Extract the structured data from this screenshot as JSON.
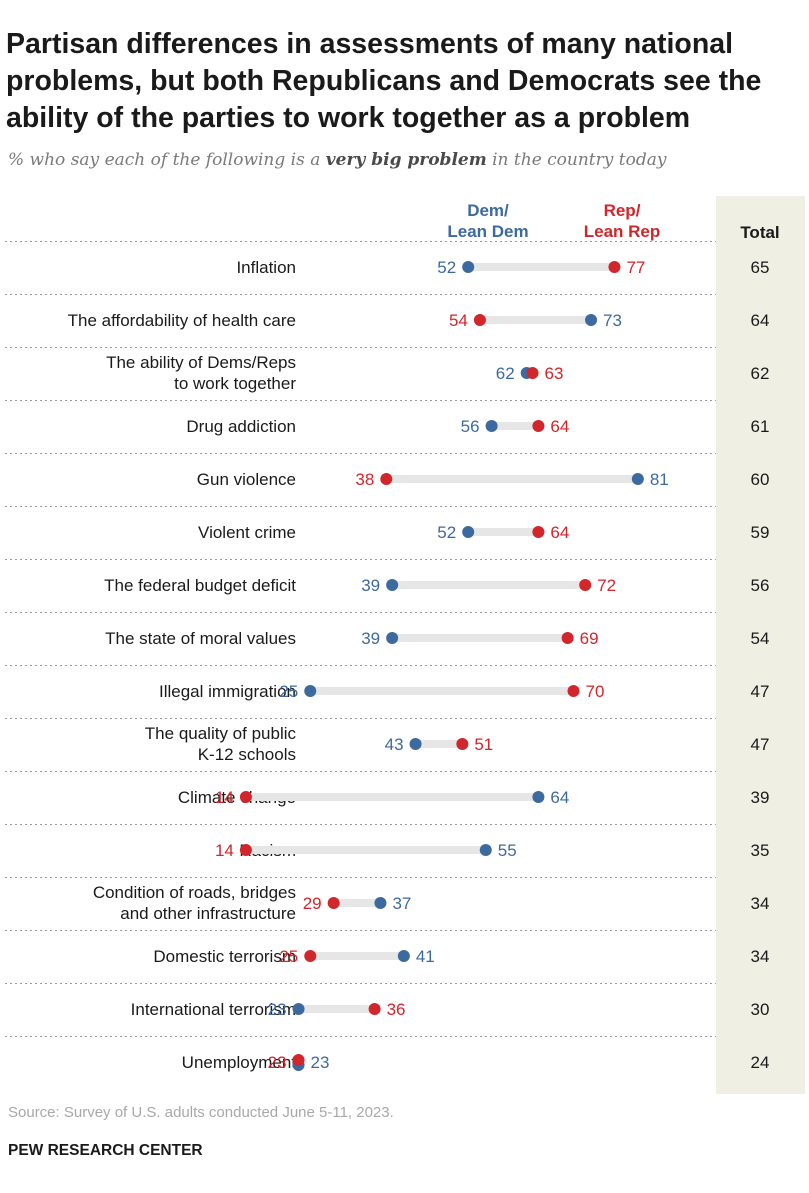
{
  "title": "Partisan differences in assessments of many national problems, but both Republicans and Democrats see the ability of the parties to work together as a problem",
  "subtitle": {
    "before": "% who say each of the following is a ",
    "emphasis": "very big problem",
    "after": " in the country today"
  },
  "source": "Source: Survey of U.S. adults conducted June 5-11, 2023.",
  "credit": "PEW RESEARCH CENTER",
  "colors": {
    "dem": "#3d6a9e",
    "rep": "#d1262b",
    "connector": "#e6e6e6",
    "total_bg": "#f0efe4",
    "divider": "#9a9a9a"
  },
  "chart_data": {
    "type": "dot",
    "headers": {
      "dem": [
        "Dem/",
        "Lean Dem"
      ],
      "rep": [
        "Rep/",
        "Lean Rep"
      ],
      "total": "Total"
    },
    "categories": [
      "Inflation",
      "The affordability of health care",
      "The ability of Dems/Reps to work together",
      "Drug addiction",
      "Gun violence",
      "Violent crime",
      "The federal budget deficit",
      "The state of moral values",
      "Illegal immigration",
      "The quality of public K-12 schools",
      "Climate change",
      "Racism",
      "Condition of roads, bridges and other infrastructure",
      "Domestic terrorism",
      "International terrorism",
      "Unemployment"
    ],
    "category_lines": [
      [
        "Inflation"
      ],
      [
        "The affordability of health care"
      ],
      [
        "The ability of Dems/Reps",
        "to work together"
      ],
      [
        "Drug addiction"
      ],
      [
        "Gun violence"
      ],
      [
        "Violent crime"
      ],
      [
        "The federal budget deficit"
      ],
      [
        "The state of moral values"
      ],
      [
        "Illegal immigration"
      ],
      [
        "The quality of public",
        "K-12 schools"
      ],
      [
        "Climate change"
      ],
      [
        "Racism"
      ],
      [
        "Condition of roads, bridges",
        "and other infrastructure"
      ],
      [
        "Domestic terrorism"
      ],
      [
        "International terrorism"
      ],
      [
        "Unemployment"
      ]
    ],
    "series": [
      {
        "name": "Dem/Lean Dem",
        "values": [
          52,
          73,
          62,
          56,
          81,
          52,
          39,
          39,
          25,
          43,
          64,
          55,
          37,
          41,
          23,
          23
        ]
      },
      {
        "name": "Rep/Lean Rep",
        "values": [
          77,
          54,
          63,
          64,
          38,
          64,
          72,
          69,
          70,
          51,
          14,
          14,
          29,
          25,
          36,
          23
        ]
      }
    ],
    "total": [
      65,
      64,
      62,
      61,
      60,
      59,
      56,
      54,
      47,
      47,
      39,
      35,
      34,
      34,
      30,
      24
    ]
  }
}
